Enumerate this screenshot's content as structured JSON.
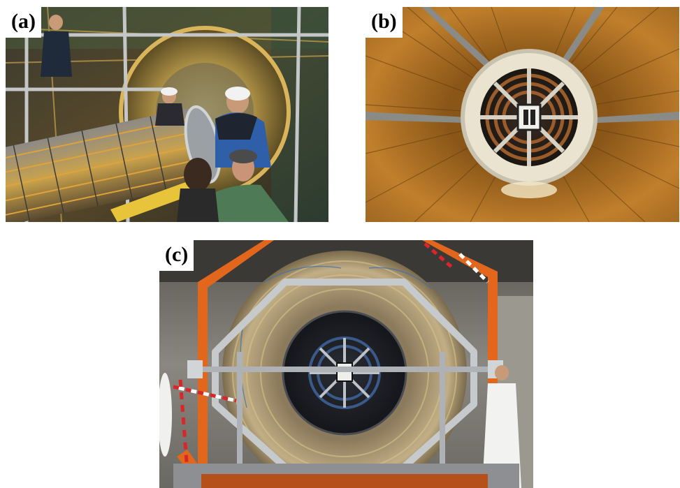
{
  "figure": {
    "panels": [
      {
        "id": "a",
        "label": "(a)",
        "subject": "photo-detector-installation"
      },
      {
        "id": "b",
        "label": "(b)",
        "subject": "photo-cylindrical-barrel-view"
      },
      {
        "id": "c",
        "label": "(c)",
        "subject": "photo-endcap-on-orange-frame"
      }
    ]
  },
  "colors": {
    "barrel_copper": "#b8782a",
    "frame_orange": "#e2661c",
    "metal_grey": "#b9bdc3",
    "dark_core": "#1c1d22"
  }
}
